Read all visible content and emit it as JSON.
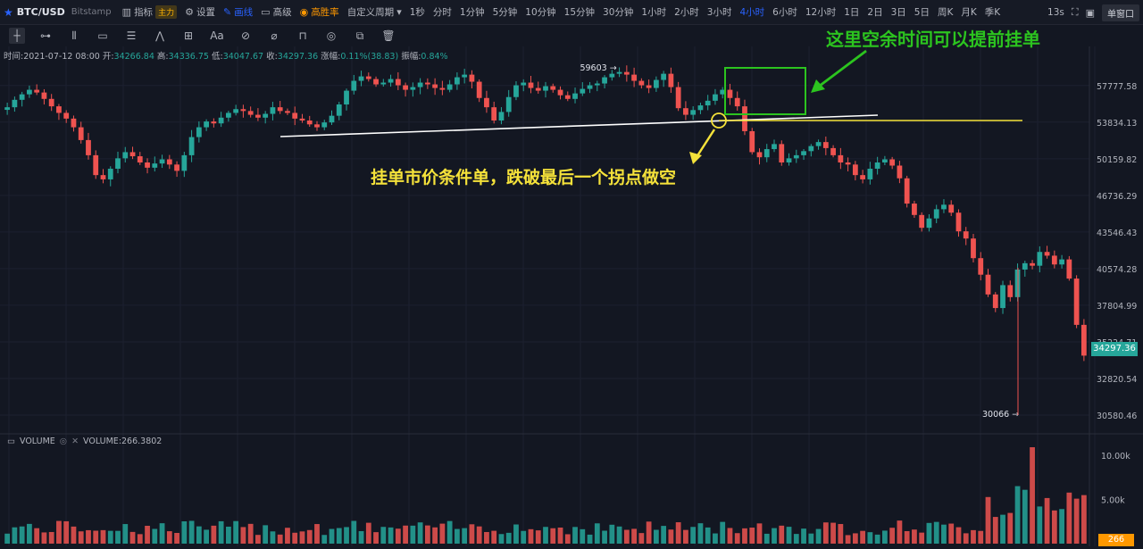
{
  "header": {
    "symbol": "BTC/USD",
    "exchange": "Bitstamp",
    "indicators_label": "指标",
    "main_badge": "主力",
    "settings_label": "设置",
    "draw_label": "画线",
    "advanced_label": "高级",
    "win_rate_label": "高胜率",
    "custom_period_label": "自定义周期",
    "periods": [
      "1秒",
      "分时",
      "1分钟",
      "5分钟",
      "10分钟",
      "15分钟",
      "30分钟",
      "1小时",
      "2小时",
      "3小时",
      "4小时",
      "6小时",
      "12小时",
      "1日",
      "2日",
      "3日",
      "5日",
      "周K",
      "月K",
      "季K"
    ],
    "active_period": "4小时",
    "countdown": "13s",
    "window_mode": "单窗口"
  },
  "ohlc": {
    "time_label": "时间:",
    "time": "2021-07-12 08:00",
    "open_label": "开:",
    "open": "34266.84",
    "high_label": "高:",
    "high": "34336.75",
    "low_label": "低:",
    "low": "34047.67",
    "close_label": "收:",
    "close": "34297.36",
    "change_label": "涨幅:",
    "change": "0.11%(38.83)",
    "amplitude_label": "振幅:",
    "amplitude": "0.84%"
  },
  "annotations": {
    "green_text": "这里空余时间可以提前挂单",
    "yellow_text": "挂单市价条件单，跌破最后一个拐点做空",
    "high_marker": "59603",
    "low_marker": "30066"
  },
  "price_axis": {
    "ticks": [
      "57777.58",
      "53834.13",
      "50159.82",
      "46736.29",
      "43546.43",
      "40574.28",
      "37804.99",
      "35224.71",
      "32820.54",
      "30580.46"
    ],
    "current_price": "34297.36"
  },
  "volume": {
    "label": "VOLUME",
    "value_label": "VOLUME:266.3802",
    "ticks": [
      "10.00k",
      "5.00k"
    ],
    "current": "266"
  },
  "colors": {
    "up": "#26a69a",
    "down": "#ef5350",
    "accent": "#2962ff",
    "annotation_green": "#2cc41f",
    "annotation_yellow": "#f5e23a",
    "trendline": "#ffffff"
  },
  "chart_data": {
    "type": "candlestick",
    "candles_close": [
      55400,
      56200,
      56800,
      57300,
      57000,
      56300,
      55500,
      54800,
      54200,
      53300,
      52000,
      50500,
      48600,
      48200,
      49200,
      50200,
      50800,
      50400,
      49800,
      49300,
      49700,
      50100,
      49600,
      49000,
      50500,
      52300,
      53300,
      53900,
      53700,
      54300,
      54800,
      55200,
      55000,
      54600,
      54300,
      54700,
      55400,
      55000,
      54800,
      54200,
      54000,
      53600,
      53300,
      53800,
      54500,
      55700,
      57200,
      58300,
      58800,
      58500,
      57900,
      58100,
      58500,
      57800,
      57300,
      57600,
      58100,
      57900,
      57500,
      57300,
      57900,
      58700,
      59000,
      58200,
      56400,
      55400,
      54000,
      54900,
      56500,
      57800,
      58100,
      57500,
      57200,
      57700,
      57300,
      56700,
      56300,
      56900,
      57400,
      57800,
      58000,
      58700,
      59100,
      59300,
      59000,
      58300,
      57800,
      57500,
      58400,
      59100,
      57600,
      55300,
      54600,
      55100,
      55600,
      56100,
      56800,
      57300,
      56400,
      55500,
      52900,
      50800,
      50300,
      51100,
      51600,
      49800,
      50200,
      50500,
      50900,
      51400,
      51800,
      51200,
      50500,
      49800,
      49600,
      48600,
      48200,
      49200,
      49800,
      50100,
      49500,
      48300,
      46000,
      45000,
      43900,
      44700,
      45500,
      45900,
      45200,
      43600,
      43000,
      41400,
      40100,
      38600,
      37600,
      39300,
      38400,
      40500,
      41000,
      40800,
      41900,
      41600,
      40900,
      41300,
      39800,
      36400,
      34300
    ],
    "volume_pattern": "bars per candle, peak near 11k at late decline",
    "price_range": [
      29800,
      60400
    ],
    "volume_range": [
      0,
      11000
    ]
  }
}
